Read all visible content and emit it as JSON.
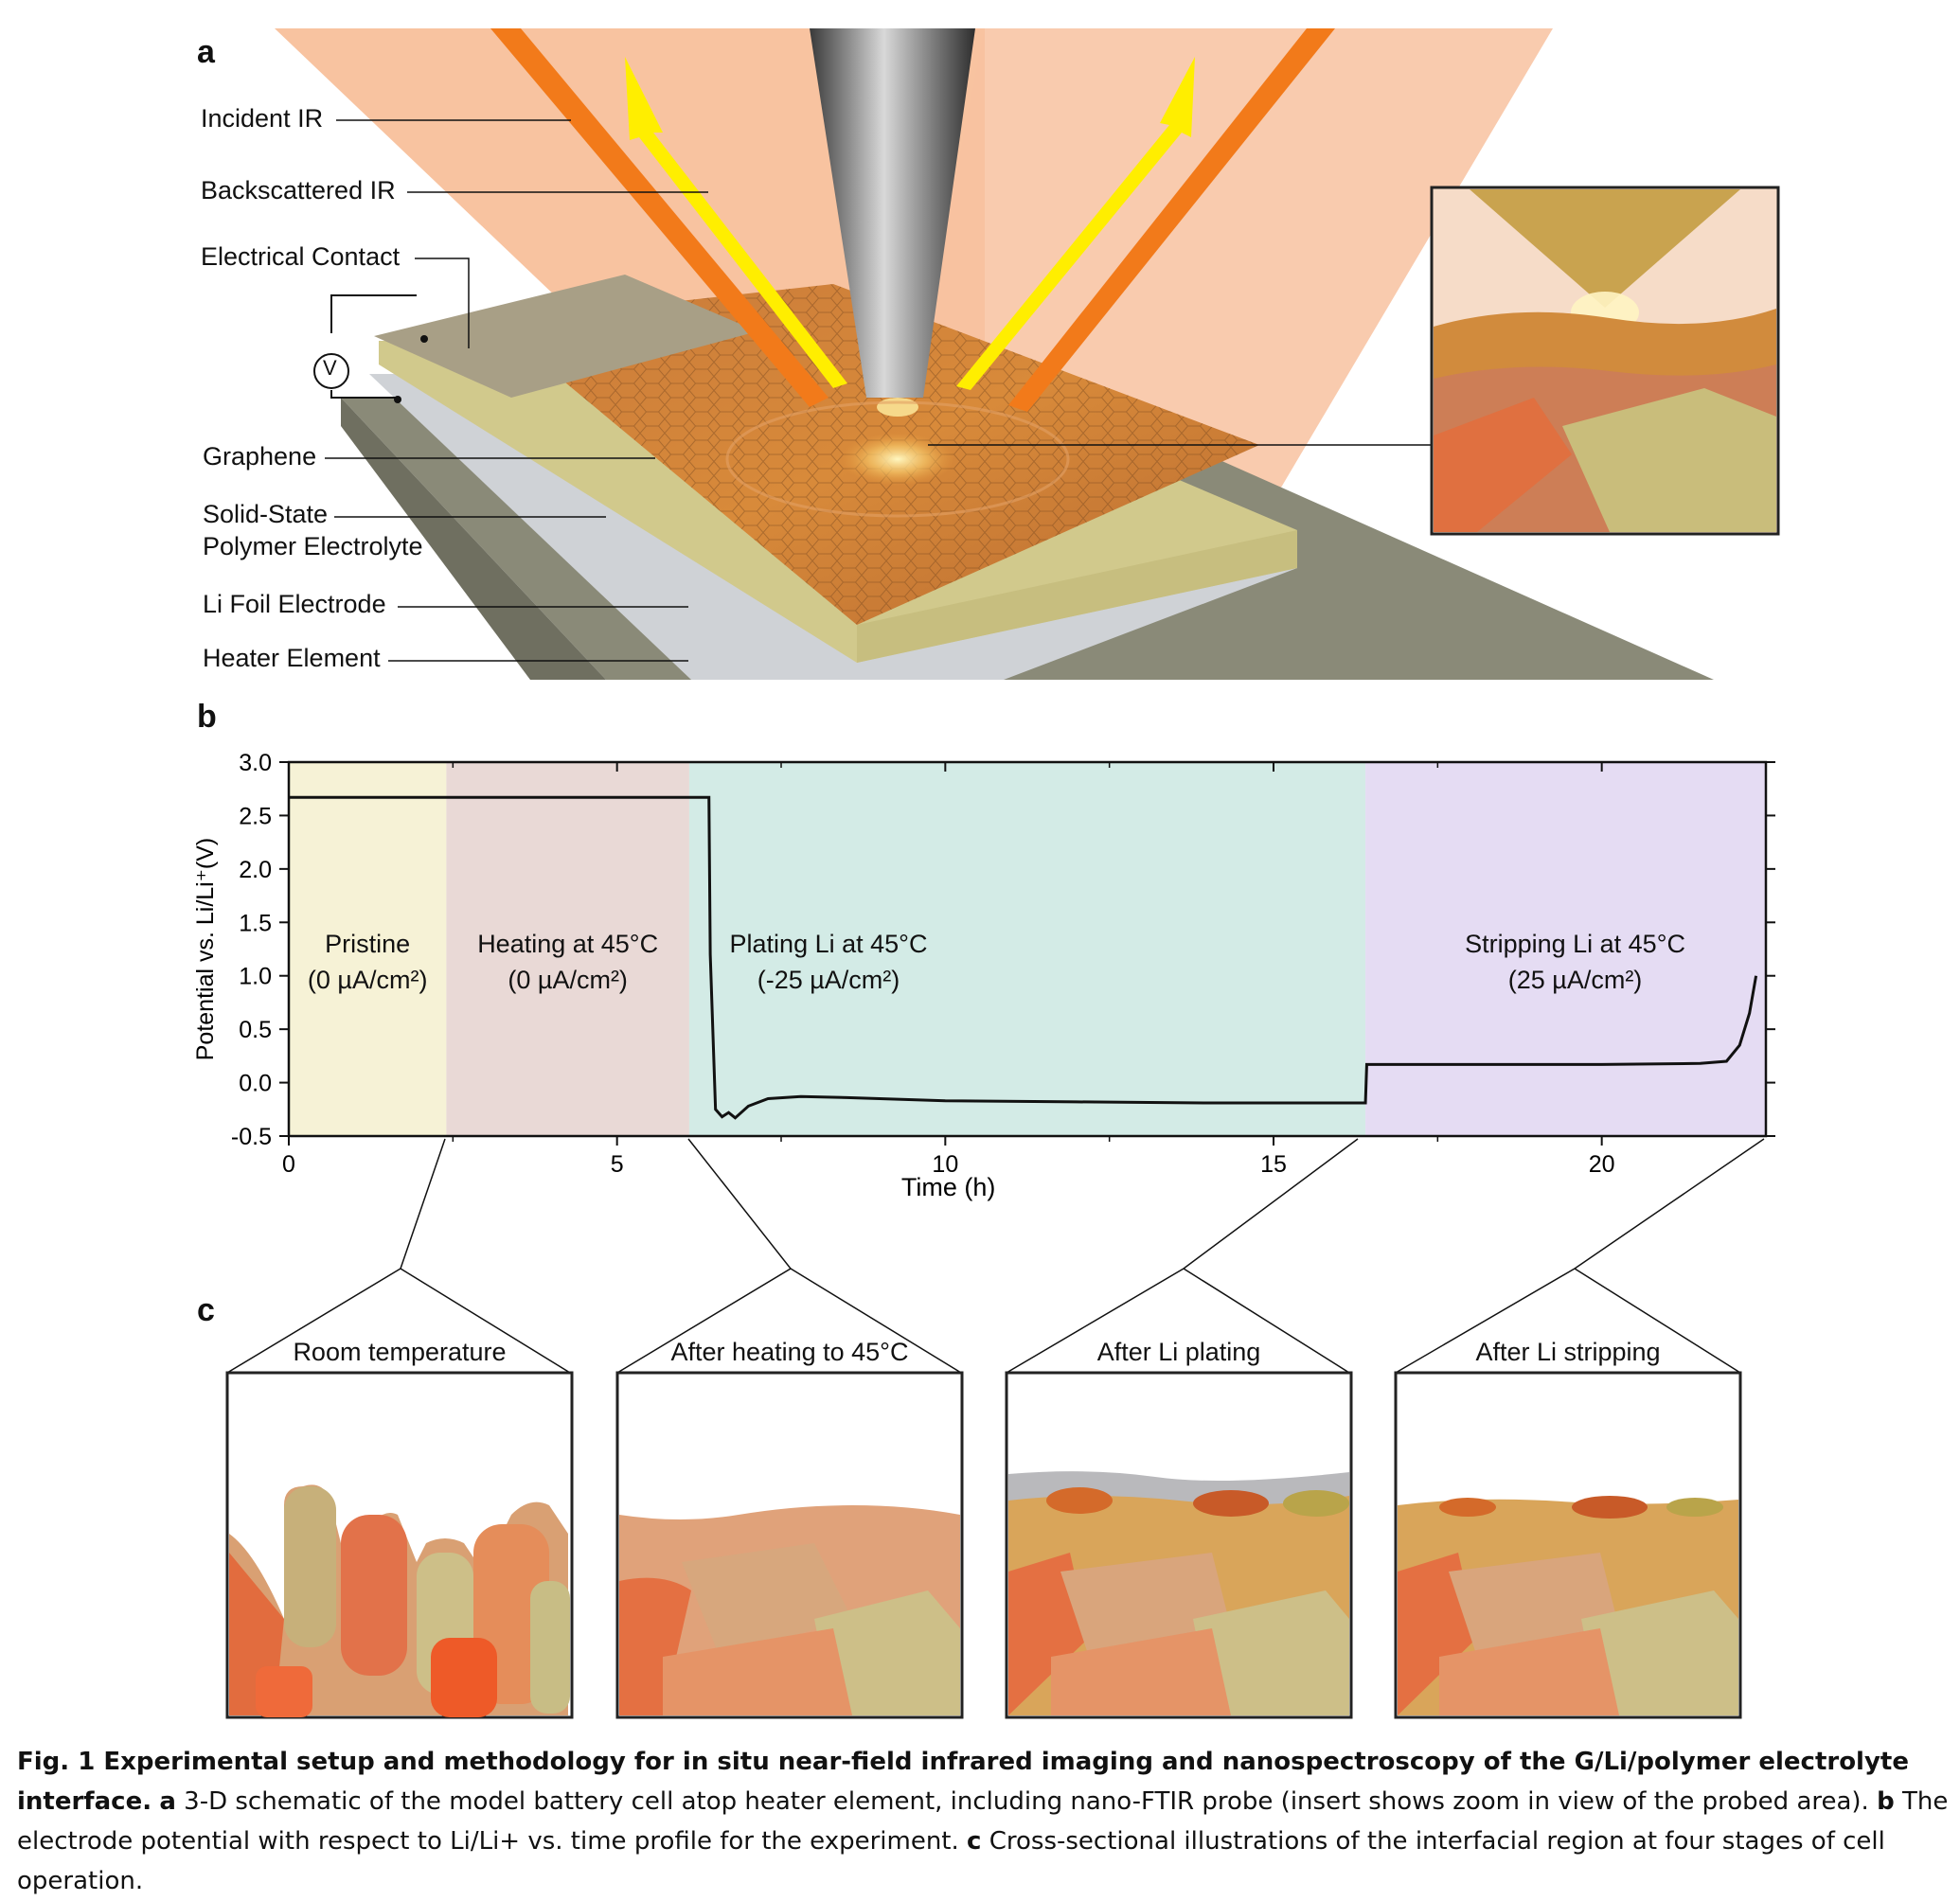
{
  "panel_a": {
    "letter": "a",
    "labels": {
      "incident_ir": "Incident IR",
      "backscattered_ir": "Backscattered IR",
      "electrical_contact": "Electrical Contact",
      "voltmeter": "V",
      "graphene": "Graphene",
      "electrolyte_line1": "Solid-State",
      "electrolyte_line2": "Polymer Electrolyte",
      "li_foil": "Li Foil Electrode",
      "heater": "Heater Element"
    }
  },
  "panel_b": {
    "letter": "b",
    "regions": [
      {
        "title": "Pristine",
        "sub": "(0 µA/cm²)",
        "color": "#f6f2d6"
      },
      {
        "title": "Heating at 45°C",
        "sub": "(0 µA/cm²)",
        "color": "#e9d9d6"
      },
      {
        "title": "Plating Li at 45°C",
        "sub": "(-25 µA/cm²)",
        "color": "#d3ebe6"
      },
      {
        "title": "Stripping Li at 45°C",
        "sub": "(25 µA/cm²)",
        "color": "#e5dcf3"
      }
    ]
  },
  "chart_data": {
    "type": "line",
    "xlabel": "Time (h)",
    "ylabel": "Potential vs. Li/Li⁺(V)",
    "xlim": [
      0,
      22.5
    ],
    "ylim": [
      -0.5,
      3.0
    ],
    "xticks": [
      0,
      5,
      10,
      15,
      20
    ],
    "yticks": [
      3.0,
      2.5,
      2.0,
      1.5,
      1.0,
      0.5,
      0.0,
      -0.5
    ],
    "grid": false,
    "region_bounds": [
      0,
      2.4,
      6.1,
      16.4,
      22.5
    ],
    "series": [
      {
        "x": [
          0,
          6.4,
          6.42,
          6.5,
          6.6,
          6.7,
          6.8,
          7.0,
          7.3,
          7.8,
          8.5,
          10,
          12,
          14,
          16.4,
          16.42,
          18,
          20,
          21.5,
          21.9,
          22.1,
          22.25,
          22.35
        ],
        "y": [
          2.67,
          2.67,
          1.2,
          -0.25,
          -0.32,
          -0.28,
          -0.33,
          -0.22,
          -0.15,
          -0.13,
          -0.14,
          -0.17,
          -0.18,
          -0.19,
          -0.19,
          0.17,
          0.17,
          0.17,
          0.18,
          0.2,
          0.35,
          0.65,
          1.0
        ]
      }
    ]
  },
  "panel_c": {
    "letter": "c",
    "stages": [
      "Room temperature",
      "After heating to 45°C",
      "After Li plating",
      "After Li stripping"
    ]
  },
  "caption": {
    "title": "Fig. 1 Experimental setup and methodology for in situ near-field infrared imaging and nanospectroscopy of the G/Li/polymer electrolyte interface.",
    "a_key": "a",
    "a_text": " 3-D schematic of the model battery cell atop heater element, including nano-FTIR probe (insert shows zoom in view of the probed area). ",
    "b_key": "b",
    "b_text": " The electrode potential with respect to Li/Li+ vs. time profile for the experiment. ",
    "c_key": "c",
    "c_text": " Cross-sectional illustrations of the interfacial region at four stages of cell operation."
  }
}
